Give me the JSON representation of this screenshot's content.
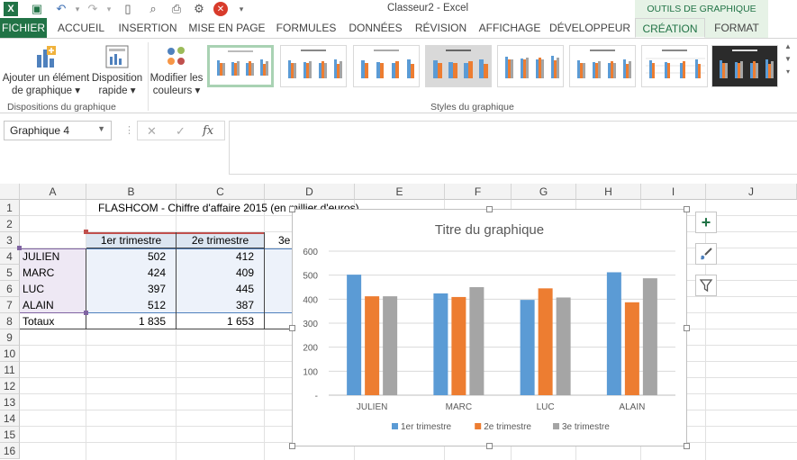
{
  "window": {
    "title": "Classeur2 - Excel",
    "contextual_title": "OUTILS DE GRAPHIQUE"
  },
  "tabs": [
    "FICHIER",
    "ACCUEIL",
    "INSERTION",
    "MISE EN PAGE",
    "FORMULES",
    "DONNÉES",
    "RÉVISION",
    "AFFICHAGE",
    "DÉVELOPPEUR",
    "CRÉATION",
    "FORMAT"
  ],
  "active_tab": "CRÉATION",
  "ribbon": {
    "add_element": [
      "Ajouter un élément",
      "de graphique ▾"
    ],
    "quick_layout": [
      "Disposition",
      "rapide ▾"
    ],
    "change_colors": [
      "Modifier les",
      "couleurs ▾"
    ],
    "group_layouts": "Dispositions du graphique",
    "group_styles": "Styles du graphique"
  },
  "formula_bar": {
    "name_box": "Graphique 4",
    "fx": "fx",
    "value": ""
  },
  "columns": [
    "A",
    "B",
    "C",
    "D",
    "E",
    "F",
    "G",
    "H",
    "I",
    "J"
  ],
  "rows": [
    "1",
    "2",
    "3",
    "4",
    "5",
    "6",
    "7",
    "8",
    "9",
    "10",
    "11",
    "12",
    "13",
    "14",
    "15",
    "16"
  ],
  "sheet": {
    "title": "FLASHCOM - Chiffre d'affaire 2015 (en millier d'euros)",
    "headers": [
      "1er trimestre",
      "2e trimestre",
      "3e"
    ],
    "table": [
      {
        "name": "JULIEN",
        "q1": "502",
        "q2": "412"
      },
      {
        "name": "MARC",
        "q1": "424",
        "q2": "409"
      },
      {
        "name": "LUC",
        "q1": "397",
        "q2": "445"
      },
      {
        "name": "ALAIN",
        "q1": "512",
        "q2": "387"
      }
    ],
    "totals": {
      "label": "Totaux",
      "q1": "1 835",
      "q2": "1 653"
    }
  },
  "chart_data": {
    "type": "bar",
    "title": "Titre du graphique",
    "categories": [
      "JULIEN",
      "MARC",
      "LUC",
      "ALAIN"
    ],
    "series": [
      {
        "name": "1er trimestre",
        "values": [
          502,
          424,
          397,
          512
        ],
        "color": "#5b9bd5"
      },
      {
        "name": "2e trimestre",
        "values": [
          412,
          409,
          445,
          387
        ],
        "color": "#ed7d31"
      },
      {
        "name": "3e trimestre",
        "values": [
          412,
          450,
          407,
          487
        ],
        "color": "#a5a5a5"
      }
    ],
    "ylim": [
      0,
      600
    ],
    "yticks": [
      "-",
      "100",
      "200",
      "300",
      "400",
      "500",
      "600"
    ],
    "grid": true,
    "legend": "bottom"
  },
  "colors": {
    "excel_green": "#217346",
    "header_fill": "#dce6f1",
    "selection_red": "#c0504d",
    "selection_purple": "#8064a2",
    "selection_blue": "#4f81bd"
  }
}
